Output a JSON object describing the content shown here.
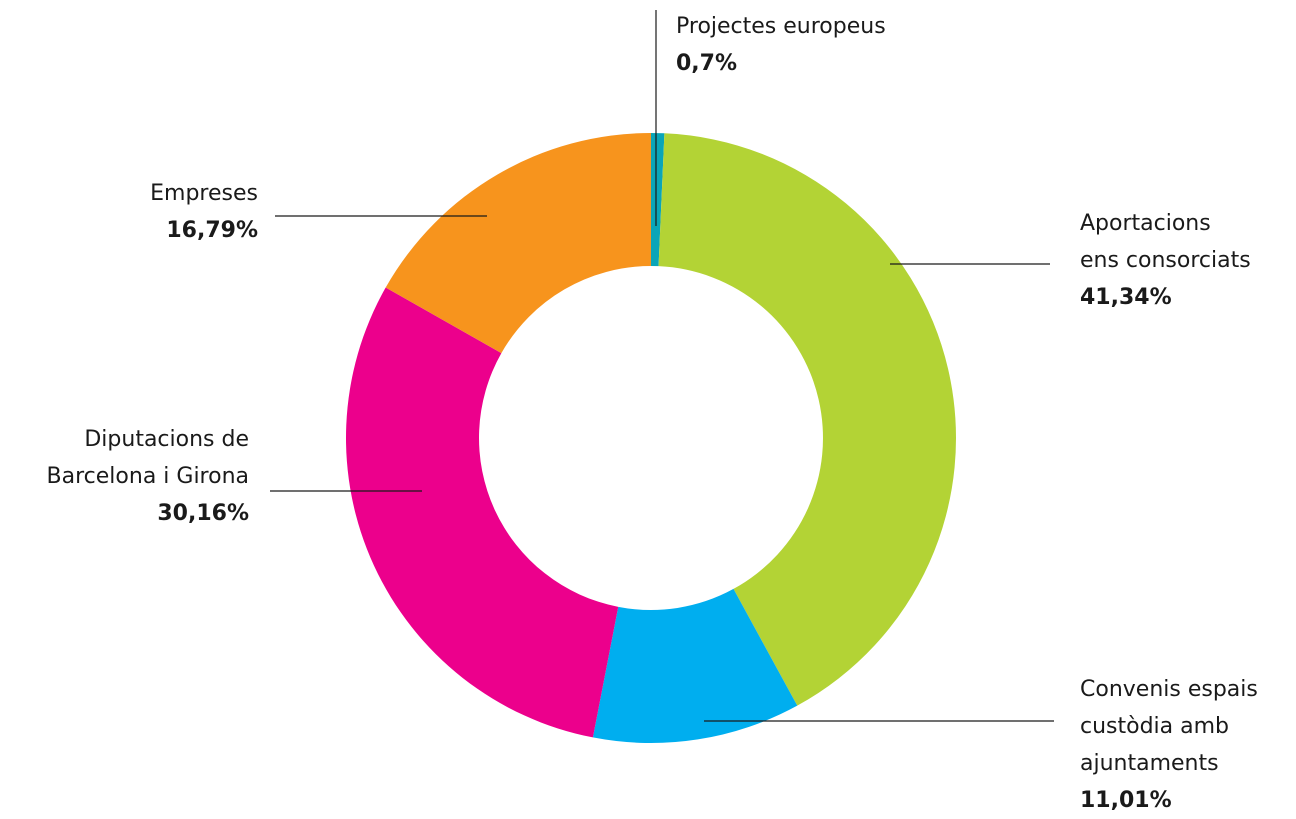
{
  "chart_data": {
    "type": "pie",
    "style": "donut",
    "title": "",
    "slices": [
      {
        "label_lines": [
          "Projectes europeus"
        ],
        "value": 0.7,
        "value_label": "0,7%",
        "color": "#0aa5b8"
      },
      {
        "label_lines": [
          "Aportacions",
          "ens consorciats"
        ],
        "value": 41.34,
        "value_label": "41,34%",
        "color": "#b3d335"
      },
      {
        "label_lines": [
          "Convenis espais",
          "custòdia amb",
          "ajuntaments"
        ],
        "value": 11.01,
        "value_label": "11,01%",
        "color": "#00aeef"
      },
      {
        "label_lines": [
          "Diputacions de",
          "Barcelona i Girona"
        ],
        "value": 30.16,
        "value_label": "30,16%",
        "color": "#ec008c"
      },
      {
        "label_lines": [
          "Empreses"
        ],
        "value": 16.79,
        "value_label": "16,79%",
        "color": "#f7941d"
      }
    ]
  }
}
